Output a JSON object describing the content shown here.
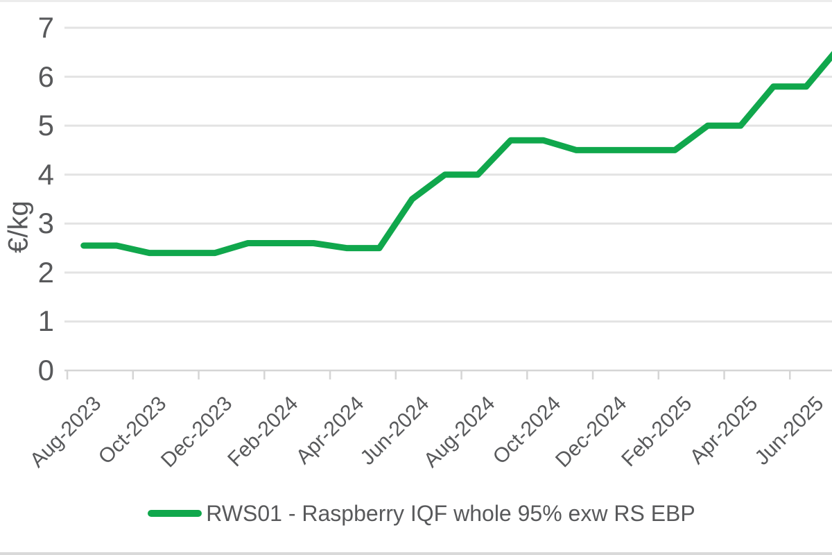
{
  "chart_data": {
    "type": "line",
    "title": "",
    "ylabel": "€/kg",
    "xlabel": "",
    "ylim": [
      0,
      7
    ],
    "y_ticks": [
      0,
      1,
      2,
      3,
      4,
      5,
      6,
      7
    ],
    "grid": "horizontal",
    "legend_position": "bottom",
    "x": [
      "Aug-2023",
      "Sep-2023",
      "Oct-2023",
      "Nov-2023",
      "Dec-2023",
      "Jan-2024",
      "Feb-2024",
      "Mar-2024",
      "Apr-2024",
      "May-2024",
      "Jun-2024",
      "Jul-2024",
      "Aug-2024",
      "Sep-2024",
      "Oct-2024",
      "Nov-2024",
      "Dec-2024",
      "Jan-2025",
      "Feb-2025",
      "Mar-2025",
      "Apr-2025",
      "May-2025",
      "Jun-2025",
      "Jul-2025"
    ],
    "x_tick_labels": [
      "Aug-2023",
      "Oct-2023",
      "Dec-2023",
      "Feb-2024",
      "Apr-2024",
      "Jun-2024",
      "Aug-2024",
      "Oct-2024",
      "Dec-2024",
      "Feb-2025",
      "Apr-2025",
      "Jun-2025"
    ],
    "series": [
      {
        "name": "RWS01 - Raspberry IQF whole 95% exw RS EBP",
        "color": "#10a74c",
        "values": [
          2.55,
          2.55,
          2.4,
          2.4,
          2.4,
          2.6,
          2.6,
          2.6,
          2.5,
          2.5,
          3.5,
          4.0,
          4.0,
          4.7,
          4.7,
          4.5,
          4.5,
          4.5,
          4.5,
          5.0,
          5.0,
          5.8,
          5.8,
          6.6
        ]
      }
    ]
  },
  "colors": {
    "line_green": "#10a74c",
    "gridline": "#e3e3e3",
    "axis": "#d5d5d5",
    "text": "#58595b",
    "top_border": "#ececec",
    "bottom_border": "#d9d9d9"
  }
}
